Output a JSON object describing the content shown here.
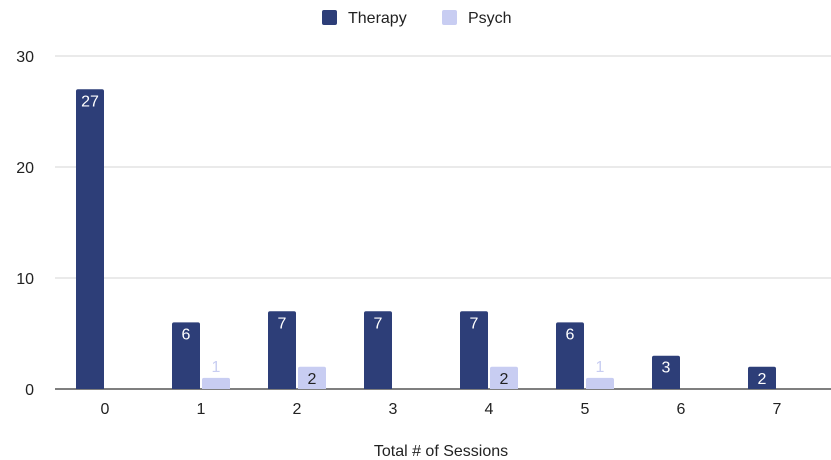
{
  "chart_data": {
    "type": "bar",
    "title": "",
    "xlabel": "Total # of Sessions",
    "ylabel": "",
    "ylim": [
      0,
      30
    ],
    "yticks": [
      0,
      10,
      20,
      30
    ],
    "grid": true,
    "legend_position": "top-center",
    "categories": [
      "0",
      "1",
      "2",
      "3",
      "4",
      "5",
      "6",
      "7"
    ],
    "series": [
      {
        "name": "Therapy",
        "color": "#2d3e78",
        "label_color": "#ffffff",
        "values": [
          27,
          6,
          7,
          7,
          7,
          6,
          3,
          2
        ]
      },
      {
        "name": "Psych",
        "color": "#c8cdf2",
        "label_color": "#222222",
        "values": [
          0,
          1,
          2,
          0,
          2,
          1,
          0,
          0
        ]
      }
    ],
    "outside_label_color": "#c8cdf2"
  }
}
